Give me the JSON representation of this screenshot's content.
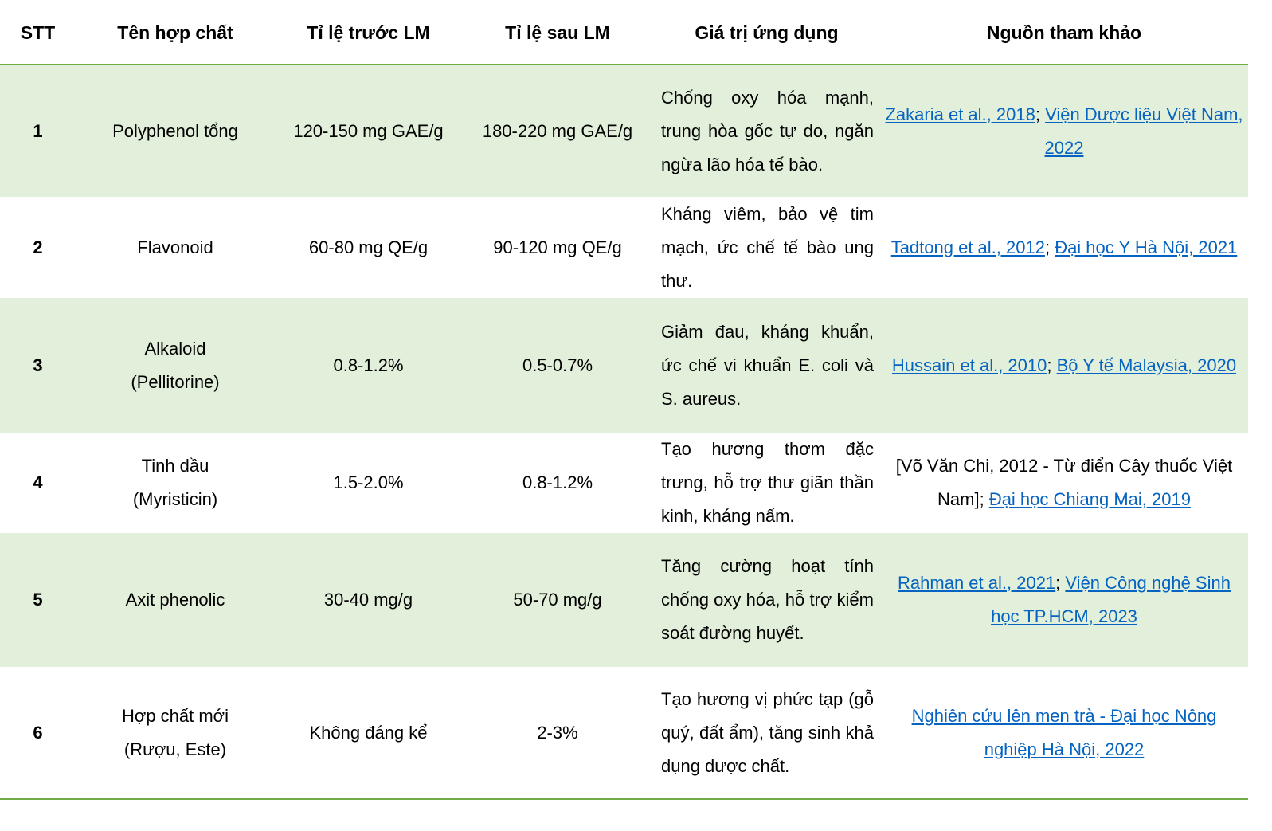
{
  "table": {
    "header": [
      "STT",
      "Tên hợp chất",
      "Tỉ lệ trước LM",
      "Tỉ lệ sau LM",
      "Giá trị ứng dụng",
      "Nguồn tham khảo"
    ],
    "rows": [
      {
        "stt": "1",
        "name": "Polyphenol tổng",
        "before": "120-150 mg GAE/g",
        "after": "180-220 mg GAE/g",
        "value": "Chống oxy hóa mạnh, trung hòa gốc tự do, ngăn ngừa lão hóa tế bào.",
        "sources": [
          {
            "text": "Zakaria et al., 2018",
            "link": true
          },
          {
            "text": "; ",
            "link": false
          },
          {
            "text": "Viện Dược liệu Việt Nam, 2022",
            "link": true
          }
        ]
      },
      {
        "stt": "2",
        "name": "Flavonoid",
        "before": "60-80 mg QE/g",
        "after": "90-120 mg QE/g",
        "value": "Kháng viêm, bảo vệ tim mạch, ức chế tế bào ung thư.",
        "sources": [
          {
            "text": "Tadtong et al., 2012",
            "link": true
          },
          {
            "text": "; ",
            "link": false
          },
          {
            "text": "Đại học Y Hà Nội, 2021",
            "link": true
          }
        ]
      },
      {
        "stt": "3",
        "name": "Alkaloid (Pellitorine)",
        "before": "0.8-1.2%",
        "after": "0.5-0.7%",
        "value": "Giảm đau, kháng khuẩn, ức chế vi khuẩn E. coli và S. aureus.",
        "sources": [
          {
            "text": "Hussain et al., 2010",
            "link": true
          },
          {
            "text": "; ",
            "link": false
          },
          {
            "text": "Bộ Y tế Malaysia, 2020",
            "link": true
          }
        ]
      },
      {
        "stt": "4",
        "name": "Tinh dầu (Myristicin)",
        "before": "1.5-2.0%",
        "after": "0.8-1.2%",
        "value": "Tạo hương thơm đặc trưng, hỗ trợ thư giãn thần kinh, kháng nấm.",
        "sources": [
          {
            "text": "[Võ Văn Chi, 2012 - Từ điển Cây thuốc Việt Nam]; ",
            "link": false
          },
          {
            "text": "Đại học Chiang Mai, 2019",
            "link": true
          }
        ]
      },
      {
        "stt": "5",
        "name": "Axit phenolic",
        "before": "30-40 mg/g",
        "after": "50-70 mg/g",
        "value": "Tăng cường hoạt tính chống oxy hóa, hỗ trợ kiểm soát đường huyết.",
        "sources": [
          {
            "text": "Rahman et al., 2021",
            "link": true
          },
          {
            "text": "; ",
            "link": false
          },
          {
            "text": "Viện Công nghệ Sinh học TP.HCM, 2023",
            "link": true
          }
        ]
      },
      {
        "stt": "6",
        "name": "Hợp chất mới (Rượu, Este)",
        "before": "Không đáng kể",
        "after": "2-3%",
        "value": "Tạo hương vị phức tạp (gỗ quý, đất ẩm), tăng sinh khả dụng dược chất.",
        "sources": [
          {
            "text": "Nghiên cứu lên men trà - Đại học Nông nghiệp Hà Nội, 2022",
            "link": true
          }
        ]
      }
    ]
  }
}
